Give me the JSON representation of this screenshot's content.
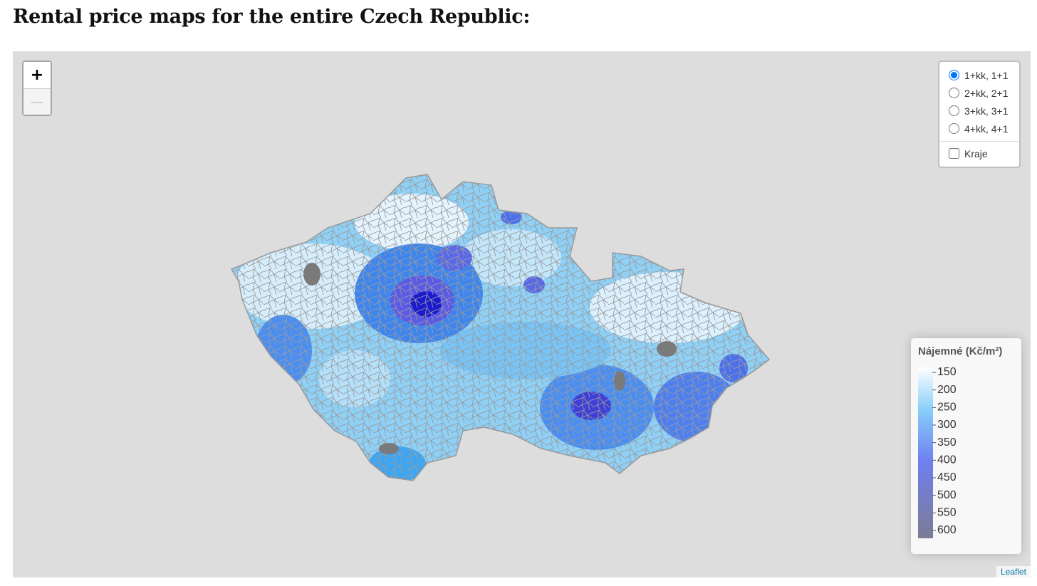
{
  "header": {
    "title": "Rental price maps for the entire Czech Republic:"
  },
  "map": {
    "zoom_in": "+",
    "zoom_out": "—",
    "layers": [
      "1+kk, 1+1",
      "2+kk, 2+1",
      "3+kk, 3+1",
      "4+kk, 4+1"
    ],
    "overlay": "Kraje",
    "legend": {
      "title": "Nájemné (Kč/m²)",
      "ticks": [
        150,
        200,
        250,
        300,
        350,
        400,
        450,
        500,
        550,
        600
      ]
    },
    "attribution": "Leaflet"
  }
}
